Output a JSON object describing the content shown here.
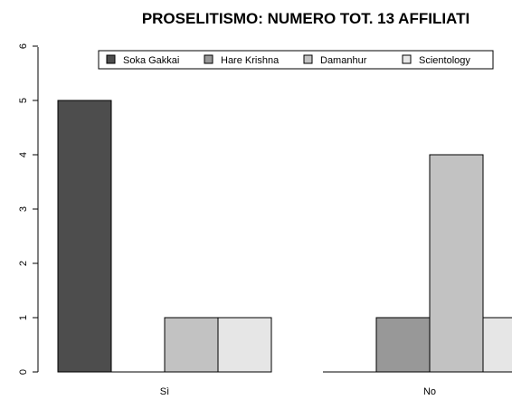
{
  "chart_data": {
    "type": "bar",
    "title": "PROSELITISMO: NUMERO TOT. 13 AFFILIATI",
    "xlabel": "",
    "ylabel": "",
    "categories": [
      "Sì",
      "No"
    ],
    "series": [
      {
        "name": "Soka Gakkai",
        "values": [
          5,
          0
        ],
        "color": "#4d4d4d"
      },
      {
        "name": "Hare Krishna",
        "values": [
          0,
          1
        ],
        "color": "#989898"
      },
      {
        "name": "Damanhur",
        "values": [
          1,
          4
        ],
        "color": "#c2c2c2"
      },
      {
        "name": "Scientology",
        "values": [
          1,
          1
        ],
        "color": "#e6e6e6"
      }
    ],
    "ylim": [
      0,
      6
    ],
    "yticks": [
      "0",
      "1",
      "2",
      "3",
      "4",
      "5",
      "6"
    ],
    "grid": false,
    "legend_position": "top"
  }
}
